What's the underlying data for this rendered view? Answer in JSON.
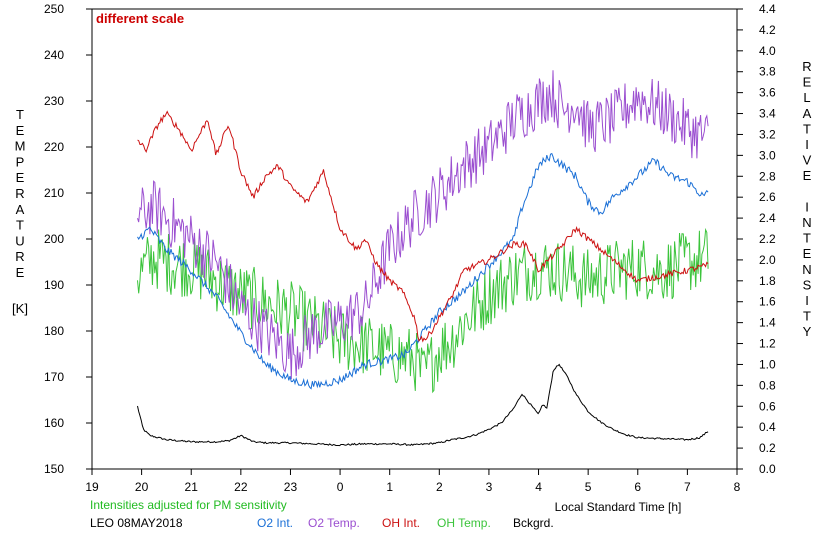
{
  "chart_data": {
    "type": "line",
    "title": "different scale",
    "title_color": "#cc0000",
    "xlabel": "Local Standard Time [h]",
    "x_ticks": [
      "19",
      "20",
      "21",
      "22",
      "23",
      "0",
      "1",
      "2",
      "3",
      "4",
      "5",
      "6",
      "7",
      "8"
    ],
    "xlim_hours_since_19": [
      0,
      13
    ],
    "left_axis": {
      "label_letters": [
        "T",
        "E",
        "M",
        "P",
        "E",
        "R",
        "A",
        "T",
        "U",
        "R",
        "E"
      ],
      "unit": "[K]",
      "ylim": [
        150,
        250
      ],
      "ticks": [
        "150",
        "160",
        "170",
        "180",
        "190",
        "200",
        "210",
        "220",
        "230",
        "240",
        "250"
      ]
    },
    "right_axis": {
      "label_letters": [
        "R",
        "E",
        "L",
        "A",
        "T",
        "I",
        "V",
        "E",
        "I",
        "N",
        "T",
        "E",
        "N",
        "S",
        "I",
        "T",
        "Y"
      ],
      "ylim": [
        0,
        4.4
      ],
      "ticks": [
        "0.0",
        "0.2",
        "0.4",
        "0.6",
        "0.8",
        "1.0",
        "1.2",
        "1.4",
        "1.6",
        "1.8",
        "2.0",
        "2.2",
        "2.4",
        "2.6",
        "2.8",
        "3.0",
        "3.2",
        "3.4",
        "3.6",
        "3.8",
        "4.0",
        "4.2",
        "4.4"
      ]
    },
    "note": "Intensities adjusted for PM sensitivity",
    "note_color": "#22bb22",
    "station": "LEO 08MAY2018",
    "series": [
      {
        "name": "O2 Int.",
        "axis": "right",
        "color": "#1a6fd6",
        "noise": 0.04,
        "x": [
          "19:55",
          "20:10",
          "20:30",
          "21:00",
          "21:30",
          "22:00",
          "22:30",
          "23:00",
          "23:30",
          "0:00",
          "0:30",
          "1:00",
          "1:20",
          "1:40",
          "2:00",
          "2:30",
          "3:00",
          "3:30",
          "3:40",
          "4:00",
          "4:15",
          "4:30",
          "4:45",
          "5:00",
          "5:15",
          "5:30",
          "6:00",
          "6:20",
          "6:40",
          "7:00",
          "7:20",
          "7:25"
        ],
        "y": [
          2.2,
          2.3,
          2.1,
          1.9,
          1.65,
          1.3,
          1.0,
          0.85,
          0.8,
          0.85,
          1.0,
          1.05,
          1.1,
          1.3,
          1.5,
          1.7,
          1.95,
          2.2,
          2.5,
          2.9,
          3.0,
          2.9,
          2.8,
          2.55,
          2.45,
          2.6,
          2.8,
          2.95,
          2.8,
          2.75,
          2.6,
          2.65
        ]
      },
      {
        "name": "O2 Temp.",
        "axis": "left",
        "color": "#9b4fd0",
        "noise": 6,
        "x": [
          "19:55",
          "20:15",
          "20:40",
          "21:00",
          "21:30",
          "22:00",
          "22:30",
          "23:00",
          "23:30",
          "0:00",
          "0:30",
          "1:00",
          "1:30",
          "2:00",
          "2:30",
          "3:00",
          "3:30",
          "4:00",
          "4:15",
          "4:30",
          "4:45",
          "5:00",
          "5:30",
          "6:00",
          "6:30",
          "7:00",
          "7:25"
        ],
        "y": [
          205,
          207,
          203,
          200,
          195,
          185,
          180,
          175,
          180,
          182,
          185,
          198,
          205,
          210,
          216,
          220,
          226,
          230,
          232,
          228,
          230,
          224,
          226,
          231,
          228,
          224,
          222
        ]
      },
      {
        "name": "OH Int.",
        "axis": "right",
        "color": "#cc1111",
        "noise": 0.03,
        "x": [
          "19:55",
          "20:05",
          "20:20",
          "20:30",
          "20:45",
          "21:00",
          "21:20",
          "21:30",
          "21:45",
          "22:00",
          "22:15",
          "22:30",
          "22:45",
          "23:00",
          "23:20",
          "23:40",
          "0:00",
          "0:20",
          "0:30",
          "0:45",
          "1:00",
          "1:15",
          "1:30",
          "1:35",
          "1:45",
          "2:00",
          "2:15",
          "2:30",
          "3:00",
          "3:30",
          "3:45",
          "4:00",
          "4:30",
          "4:45",
          "5:00",
          "5:15",
          "5:30",
          "5:45",
          "6:00",
          "6:30",
          "7:00",
          "7:25"
        ],
        "y": [
          3.15,
          3.05,
          3.3,
          3.4,
          3.25,
          3.05,
          3.35,
          3.0,
          3.3,
          2.85,
          2.6,
          2.8,
          2.9,
          2.7,
          2.55,
          2.85,
          2.3,
          2.1,
          2.2,
          1.95,
          1.8,
          1.7,
          1.45,
          1.25,
          1.25,
          1.45,
          1.65,
          1.9,
          2.0,
          2.15,
          2.15,
          1.9,
          2.15,
          2.3,
          2.2,
          2.1,
          2.0,
          1.9,
          1.8,
          1.85,
          1.9,
          1.95
        ]
      },
      {
        "name": "OH Temp.",
        "axis": "left",
        "color": "#3cc43c",
        "noise": 7,
        "x": [
          "19:55",
          "20:15",
          "20:30",
          "21:00",
          "21:30",
          "22:00",
          "22:30",
          "23:00",
          "23:30",
          "0:00",
          "0:30",
          "1:00",
          "1:30",
          "1:40",
          "2:00",
          "2:15",
          "2:30",
          "3:00",
          "3:30",
          "4:00",
          "4:30",
          "5:00",
          "5:30",
          "6:00",
          "6:30",
          "7:00",
          "7:25"
        ],
        "y": [
          192,
          196,
          195,
          194,
          191,
          188,
          186,
          184,
          181,
          178,
          177,
          175,
          174,
          170,
          176,
          178,
          182,
          188,
          192,
          194,
          193,
          191,
          193,
          194,
          193,
          195,
          196
        ]
      },
      {
        "name": "Bckgrd.",
        "axis": "right",
        "color": "#000000",
        "noise": 0.008,
        "x": [
          "19:55",
          "20:02",
          "20:10",
          "20:30",
          "21:00",
          "21:30",
          "21:45",
          "21:55",
          "22:00",
          "22:15",
          "22:30",
          "23:00",
          "23:30",
          "0:00",
          "0:30",
          "1:00",
          "1:30",
          "2:00",
          "2:15",
          "2:30",
          "2:45",
          "3:00",
          "3:15",
          "3:30",
          "3:40",
          "3:50",
          "4:00",
          "4:05",
          "4:10",
          "4:18",
          "4:25",
          "4:35",
          "4:45",
          "5:00",
          "5:15",
          "5:30",
          "5:45",
          "6:00",
          "6:30",
          "7:00",
          "7:15",
          "7:25"
        ],
        "y": [
          0.6,
          0.38,
          0.32,
          0.28,
          0.26,
          0.26,
          0.27,
          0.3,
          0.32,
          0.26,
          0.25,
          0.25,
          0.24,
          0.23,
          0.24,
          0.24,
          0.23,
          0.25,
          0.28,
          0.3,
          0.33,
          0.38,
          0.44,
          0.58,
          0.72,
          0.62,
          0.52,
          0.62,
          0.58,
          0.95,
          1.0,
          0.88,
          0.72,
          0.55,
          0.45,
          0.38,
          0.33,
          0.3,
          0.29,
          0.28,
          0.3,
          0.36
        ]
      }
    ]
  }
}
